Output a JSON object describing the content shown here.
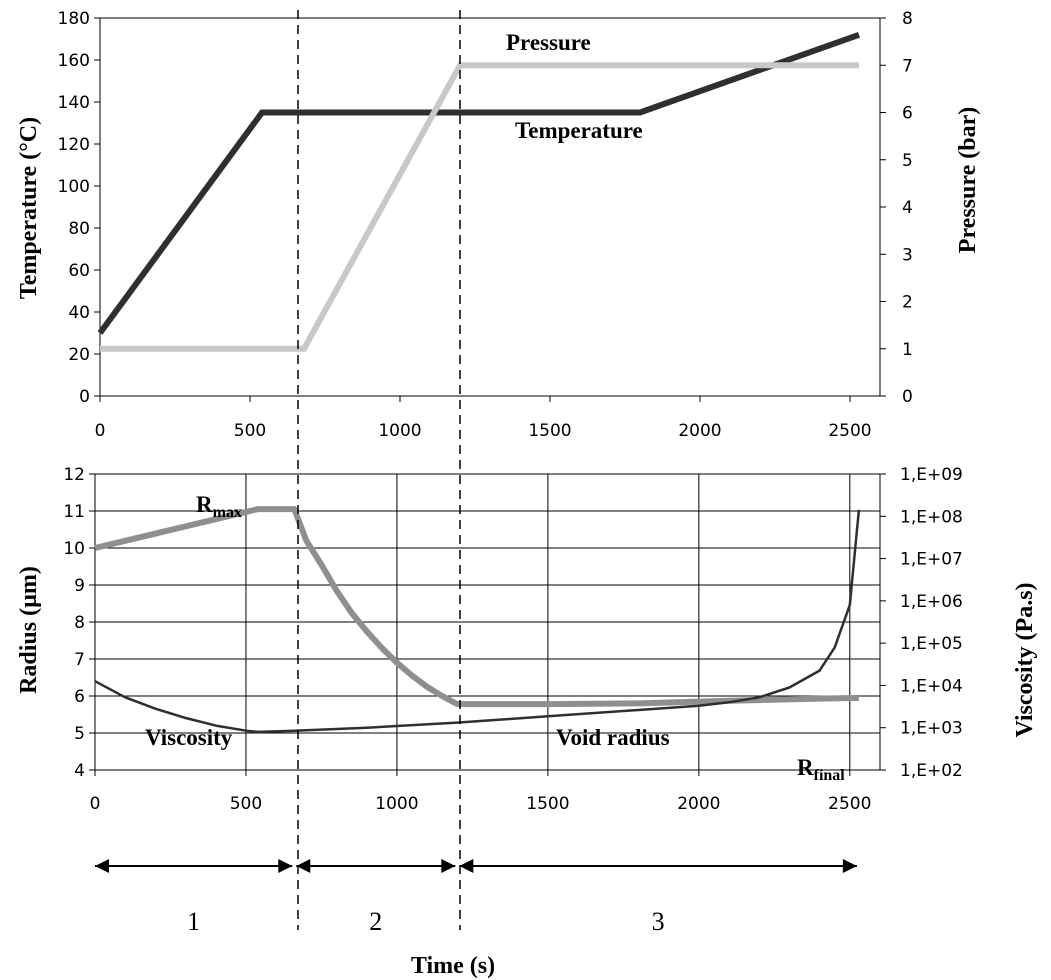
{
  "chart_data": [
    {
      "type": "line",
      "x_ticks": [
        "0",
        "500",
        "1000",
        "1500",
        "2000",
        "2500"
      ],
      "xlim": [
        0,
        2600
      ],
      "ylabel": "Temperature (°C)",
      "ylim": [
        0,
        180
      ],
      "y_ticks": [
        "0",
        "20",
        "40",
        "60",
        "80",
        "100",
        "120",
        "140",
        "160",
        "180"
      ],
      "y2label": "Pressure (bar)",
      "y2lim": [
        0,
        8
      ],
      "y2_ticks": [
        "0",
        "1",
        "2",
        "3",
        "4",
        "5",
        "6",
        "7",
        "8"
      ],
      "grid": false,
      "series": [
        {
          "name": "Temperature",
          "axis": "left",
          "color": "#2f2f2f",
          "x": [
            0,
            540,
            1800,
            2530
          ],
          "y": [
            30,
            135,
            135,
            172
          ]
        },
        {
          "name": "Pressure",
          "axis": "right",
          "color": "#c8c8c8",
          "x": [
            0,
            680,
            1200,
            2530
          ],
          "y": [
            1,
            1,
            7,
            7
          ]
        }
      ]
    },
    {
      "type": "line",
      "xlabel": "Time (s)",
      "x_ticks": [
        "0",
        "500",
        "1000",
        "1500",
        "2000",
        "2500"
      ],
      "xlim": [
        0,
        2600
      ],
      "ylabel": "Radius (µm)",
      "ylim": [
        4,
        12
      ],
      "y_ticks": [
        "4",
        "5",
        "6",
        "7",
        "8",
        "9",
        "10",
        "11",
        "12"
      ],
      "y2label": "Viscosity (Pa.s)",
      "y2lim": [
        2,
        9
      ],
      "y2_scale": "log",
      "y2_ticks": [
        "1,E+02",
        "1,E+03",
        "1,E+04",
        "1,E+05",
        "1,E+06",
        "1,E+07",
        "1,E+08",
        "1,E+09"
      ],
      "grid": true,
      "series": [
        {
          "name": "Void radius",
          "axis": "left",
          "color": "#8f8f8f",
          "x": [
            0,
            540,
            660,
            700,
            750,
            800,
            850,
            900,
            950,
            1000,
            1050,
            1100,
            1150,
            1200,
            1500,
            1800,
            2100,
            2400,
            2530
          ],
          "y": [
            10,
            11.05,
            11.05,
            10.2,
            9.55,
            8.85,
            8.25,
            7.75,
            7.3,
            6.9,
            6.55,
            6.25,
            6.0,
            5.78,
            5.78,
            5.8,
            5.87,
            5.93,
            5.95
          ]
        },
        {
          "name": "Viscosity",
          "axis": "right",
          "color": "#2f2f2f",
          "x": [
            0,
            100,
            200,
            300,
            400,
            500,
            540,
            660,
            900,
            1200,
            1500,
            1800,
            2000,
            2100,
            2200,
            2300,
            2400,
            2450,
            2500,
            2530
          ],
          "y": [
            4.1,
            3.72,
            3.45,
            3.23,
            3.05,
            2.93,
            2.9,
            2.93,
            3.0,
            3.12,
            3.27,
            3.42,
            3.52,
            3.6,
            3.72,
            3.95,
            4.35,
            4.9,
            5.9,
            8.15
          ]
        }
      ],
      "annotations": {
        "r_max": {
          "main": "R",
          "sub": "max"
        },
        "r_final": {
          "main": "R",
          "sub": "final"
        },
        "viscosity": "Viscosity",
        "void_radius": "Void radius"
      }
    }
  ],
  "labels": {
    "pressure": "Pressure",
    "temperature": "Temperature"
  },
  "phases": {
    "boundaries_s": [
      660,
      1200
    ],
    "labels": [
      "1",
      "2",
      "3"
    ]
  }
}
